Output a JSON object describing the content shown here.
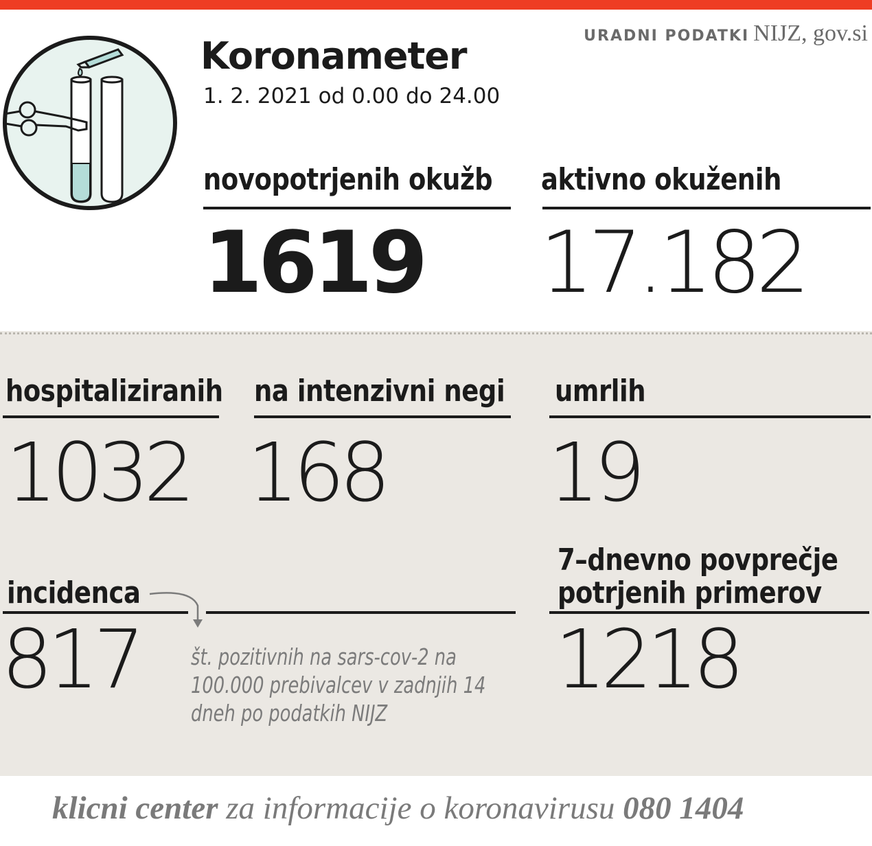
{
  "header": {
    "source_label": "URADNI PODATKI",
    "source_value": "NIJZ, gov.si",
    "title": "Koronameter",
    "date_range": "1. 2. 2021 od 0.00 do 24.00"
  },
  "illustration": {
    "icon": "test-tubes-icon",
    "circle_color": "#e8f3ef",
    "liquid_color": "#b4dcd8"
  },
  "stats": {
    "new_infections": {
      "label": "novopotrjenih okužb",
      "value": "1619"
    },
    "active_infected": {
      "label": "aktivno okuženih",
      "value": "17.182"
    },
    "hospitalized": {
      "label": "hospitaliziranih",
      "value": "1032"
    },
    "intensive_care": {
      "label": "na intenzivni negi",
      "value": "168"
    },
    "deaths": {
      "label": "umrlih",
      "value": "19"
    },
    "incidence": {
      "label": "incidenca",
      "value": "817",
      "note": "št. pozitivnih na sars-cov-2 na 100.000 prebivalcev v zadnjih 14 dneh po podatkih NIJZ"
    },
    "weekly_average": {
      "label_line1": "7–dnevno povprečje",
      "label_line2": "potrjenih primerov",
      "value": "1218"
    }
  },
  "footer": {
    "hotline_name": "klicni center",
    "hotline_text": "za informacije o koronavirusu",
    "hotline_number": "080 1404"
  },
  "colors": {
    "accent": "#ee3d23",
    "panel": "#ebe8e3",
    "text": "#1b1b1b",
    "muted": "#7a7a7a"
  }
}
